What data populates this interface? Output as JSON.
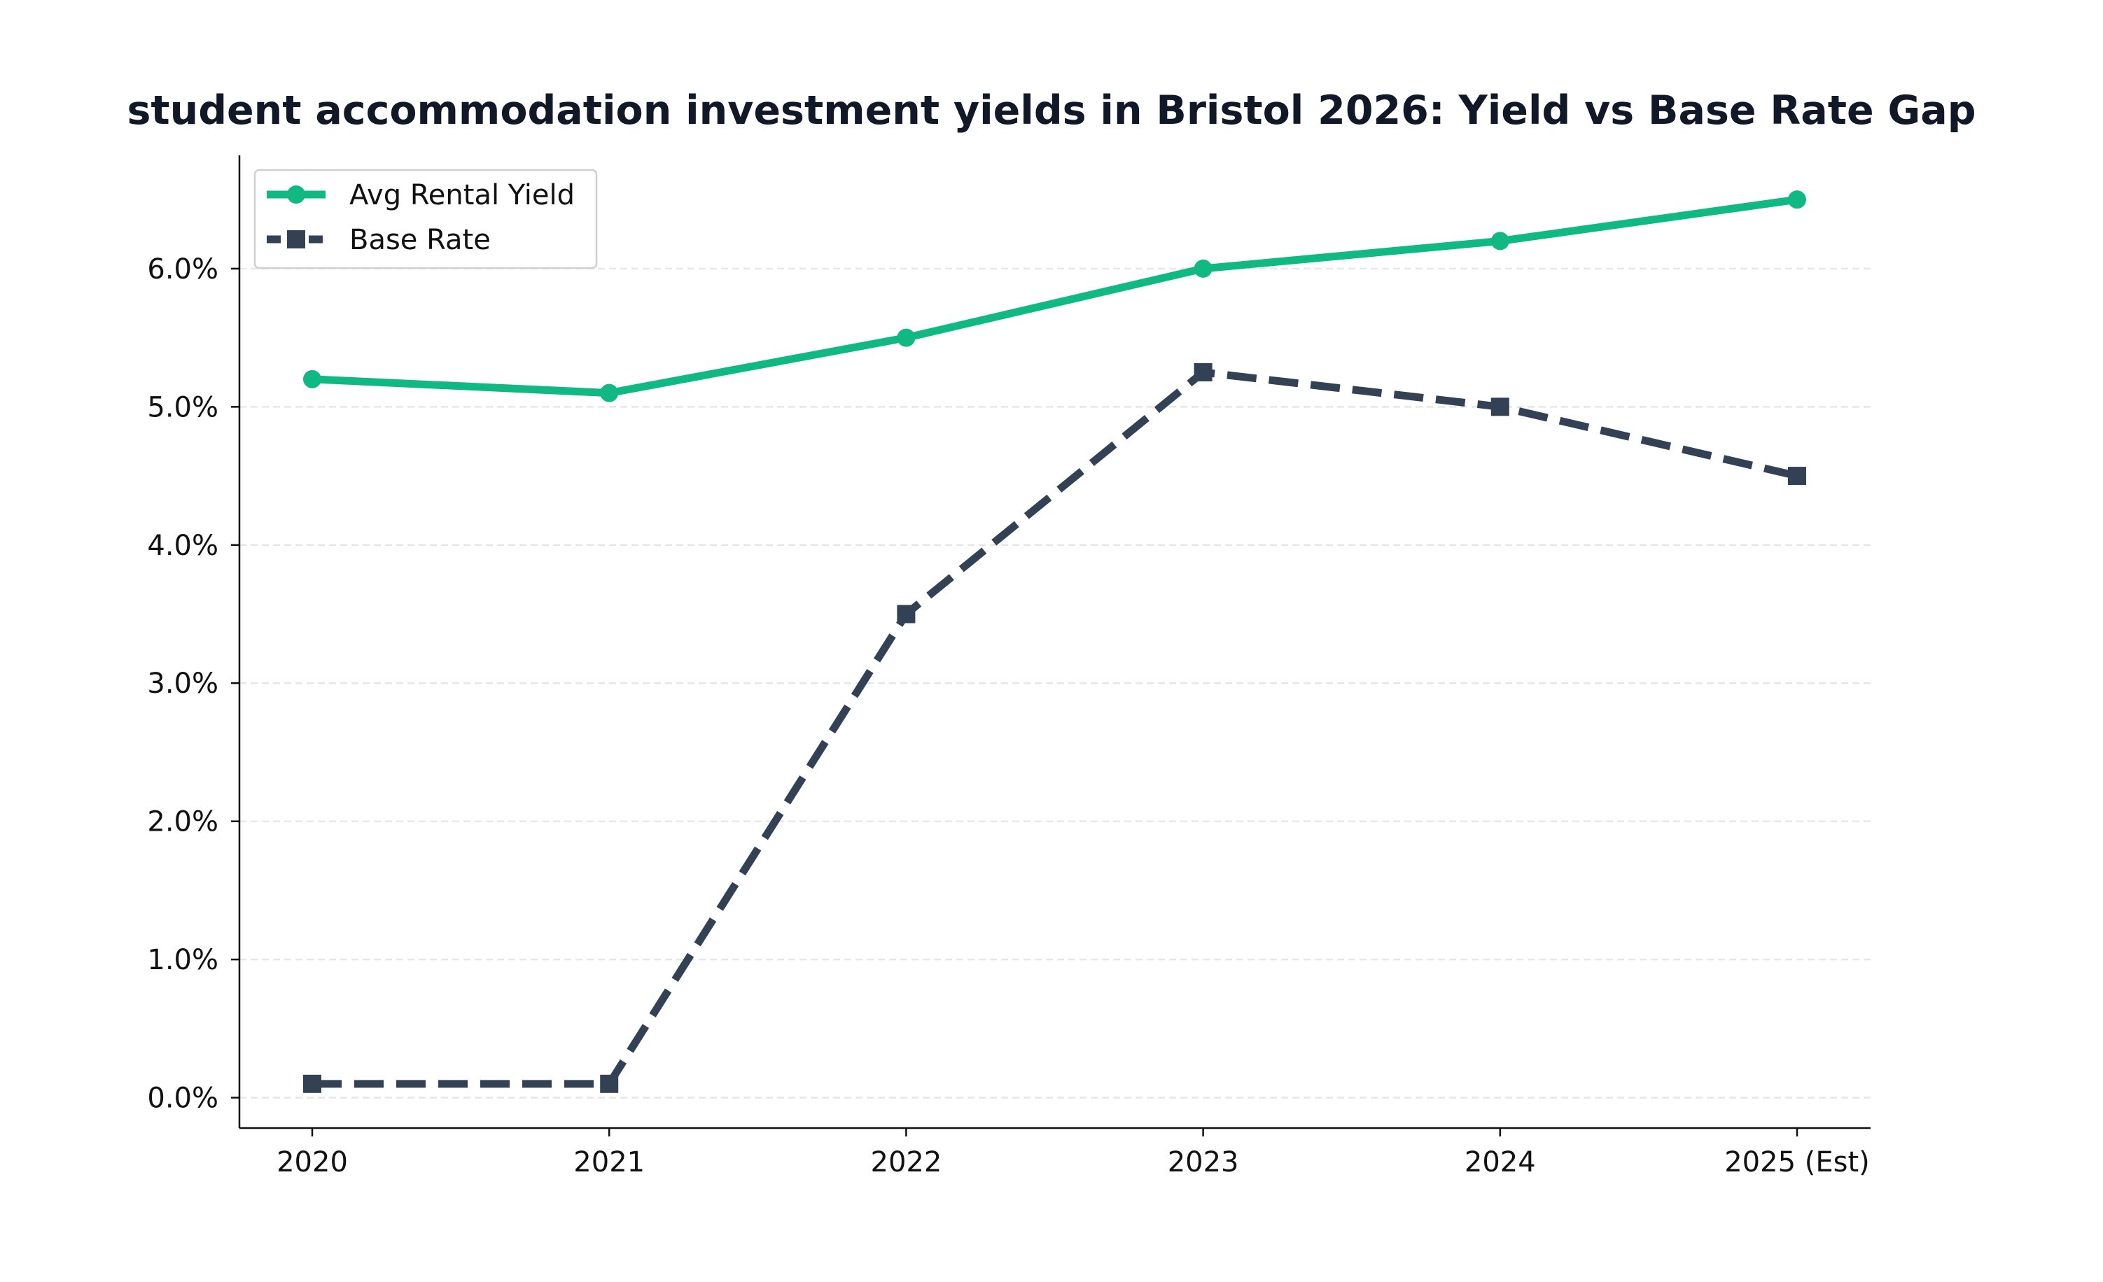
{
  "chart_data": {
    "type": "line",
    "title": "student accommodation investment yields in Bristol 2026: Yield vs Base Rate Gap",
    "xlabel": "",
    "ylabel": "",
    "categories": [
      "2020",
      "2021",
      "2022",
      "2023",
      "2024",
      "2025 (Est)"
    ],
    "y_ticks": [
      0,
      1,
      2,
      3,
      4,
      5,
      6
    ],
    "y_tick_labels": [
      "0.0%",
      "1.0%",
      "2.0%",
      "3.0%",
      "4.0%",
      "5.0%",
      "6.0%"
    ],
    "ylim": [
      -0.22,
      6.82
    ],
    "grid": "horizontal dashed",
    "legend_position": "top-left",
    "series": [
      {
        "name": "Avg Rental Yield",
        "values": [
          5.2,
          5.1,
          5.5,
          6.0,
          6.2,
          6.5
        ],
        "color": "#10b981",
        "line_style": "solid",
        "marker": "circle"
      },
      {
        "name": "Base Rate",
        "values": [
          0.1,
          0.1,
          3.5,
          5.25,
          5.0,
          4.5
        ],
        "color": "#334155",
        "line_style": "dashed",
        "marker": "square"
      }
    ]
  }
}
